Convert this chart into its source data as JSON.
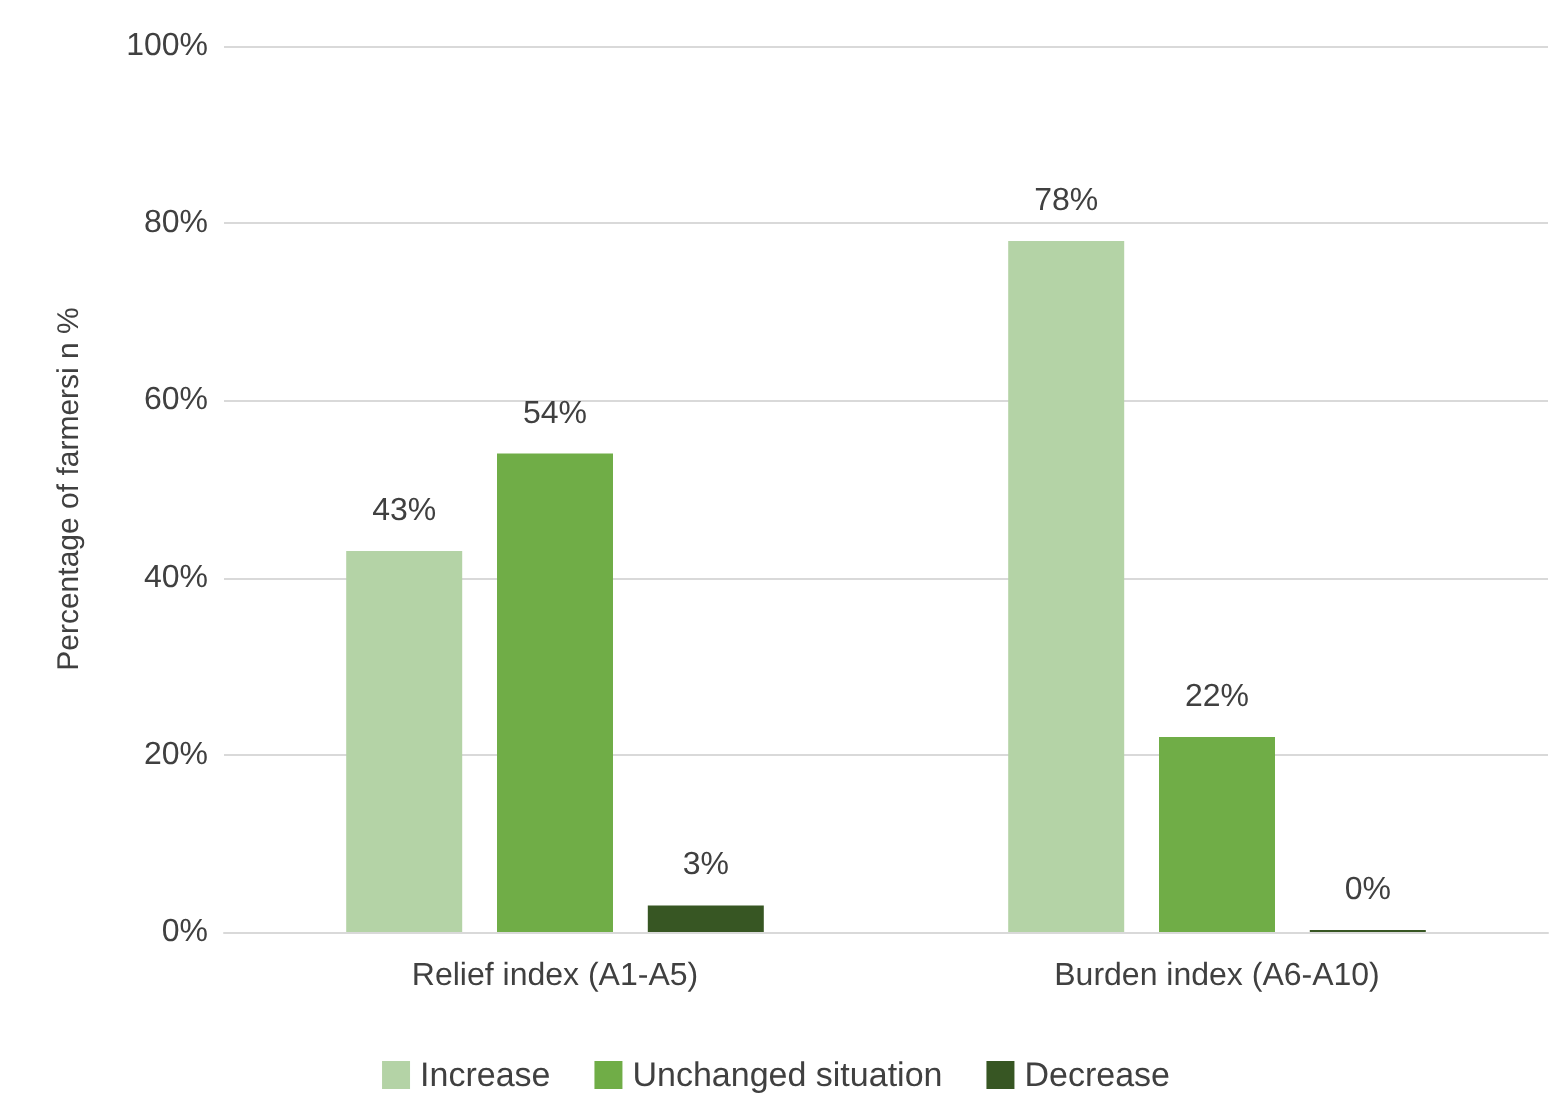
{
  "chart_data": {
    "type": "bar",
    "ylabel": "Percentage of farmersi n %",
    "categories": [
      "Relief index (A1-A5)",
      "Burden index (A6-A10)"
    ],
    "series": [
      {
        "name": "Increase",
        "color": "#b4d3a6",
        "values": [
          43,
          78
        ],
        "value_labels": [
          "43%",
          "78%"
        ]
      },
      {
        "name": "Unchanged situation",
        "color": "#70ad47",
        "values": [
          54,
          22
        ],
        "value_labels": [
          "54%",
          "22%"
        ]
      },
      {
        "name": "Decrease",
        "color": "#375623",
        "values": [
          3,
          0
        ],
        "value_labels": [
          "3%",
          "0%"
        ]
      }
    ],
    "ylim": [
      0,
      100
    ],
    "yticks": [
      {
        "value": 0,
        "label": "0%"
      },
      {
        "value": 20,
        "label": "20%"
      },
      {
        "value": 40,
        "label": "40%"
      },
      {
        "value": 60,
        "label": "60%"
      },
      {
        "value": 80,
        "label": "80%"
      },
      {
        "value": 100,
        "label": "100%"
      }
    ],
    "grid": "y",
    "legend": "bottom"
  }
}
